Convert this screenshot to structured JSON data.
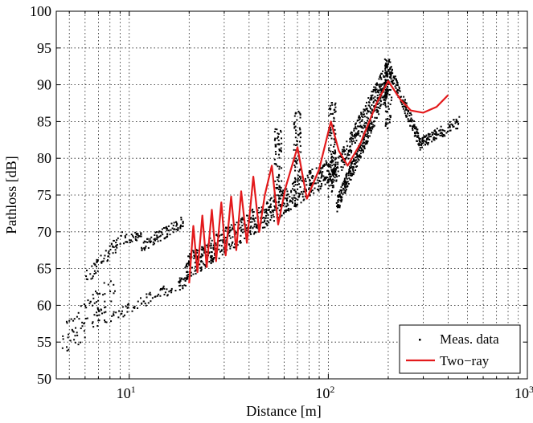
{
  "chart_data": {
    "type": "scatter",
    "title": "",
    "xlabel": "Distance [m]",
    "ylabel": "Pathloss [dB]",
    "xscale": "log",
    "xlim": [
      4.3,
      1000
    ],
    "ylim": [
      50,
      100
    ],
    "yticks": [
      50,
      55,
      60,
      65,
      70,
      75,
      80,
      85,
      90,
      95,
      100
    ],
    "xticks": [
      {
        "value": 10,
        "base": "10",
        "exp": "1"
      },
      {
        "value": 100,
        "base": "10",
        "exp": "2"
      },
      {
        "value": 1000,
        "base": "10",
        "exp": "3"
      }
    ],
    "grid": true,
    "legend_position": "bottom-right",
    "colors": {
      "measured": "#000000",
      "model": "#e31a1c"
    },
    "series": [
      {
        "name": "Meas. data",
        "kind": "scatter",
        "segments": [
          {
            "x_start": 4.6,
            "x_end": 8.5,
            "y_start": 55.0,
            "y_end": 62.0,
            "spread": 2.5,
            "count": 90
          },
          {
            "x_start": 6.0,
            "x_end": 9.5,
            "y_start": 63.5,
            "y_end": 69.5,
            "spread": 1.0,
            "count": 60
          },
          {
            "x_start": 9.5,
            "x_end": 11.5,
            "y_start": 69.0,
            "y_end": 69.5,
            "spread": 0.6,
            "count": 30
          },
          {
            "x_start": 11.5,
            "x_end": 19.0,
            "y_start": 68.0,
            "y_end": 71.5,
            "spread": 0.8,
            "count": 90
          },
          {
            "x_start": 7.5,
            "x_end": 20.0,
            "y_start": 58.0,
            "y_end": 63.5,
            "spread": 0.8,
            "count": 90
          },
          {
            "x_start": 19.0,
            "x_end": 110.0,
            "y_start": 65.0,
            "y_end": 79.0,
            "spread": 1.8,
            "count": 650
          },
          {
            "x_start": 100.0,
            "x_end": 200.0,
            "y_start": 76.0,
            "y_end": 92.0,
            "spread": 1.5,
            "count": 320
          },
          {
            "x_start": 110.0,
            "x_end": 200.0,
            "y_start": 73.5,
            "y_end": 90.0,
            "spread": 1.2,
            "count": 320
          },
          {
            "x_start": 200.0,
            "x_end": 290.0,
            "y_start": 92.5,
            "y_end": 82.0,
            "spread": 1.0,
            "count": 160
          },
          {
            "x_start": 290.0,
            "x_end": 460.0,
            "y_start": 82.0,
            "y_end": 85.0,
            "spread": 0.8,
            "count": 110
          }
        ],
        "peaks": [
          {
            "x": 56,
            "y": 84.0
          },
          {
            "x": 70,
            "y": 86.5
          },
          {
            "x": 105,
            "y": 88.0
          },
          {
            "x": 200,
            "y": 93.5
          }
        ]
      },
      {
        "name": "Two−ray",
        "kind": "line",
        "x_range": [
          20,
          400
        ],
        "points": [
          [
            20,
            63.0
          ],
          [
            21.0,
            70.8
          ],
          [
            22.0,
            64.5
          ],
          [
            23.3,
            72.2
          ],
          [
            24.5,
            65.2
          ],
          [
            26.0,
            73.0
          ],
          [
            27.3,
            66.0
          ],
          [
            29.0,
            74.0
          ],
          [
            30.5,
            66.8
          ],
          [
            32.5,
            74.8
          ],
          [
            34.5,
            67.5
          ],
          [
            36.5,
            75.5
          ],
          [
            39.0,
            68.5
          ],
          [
            42.0,
            77.5
          ],
          [
            45.0,
            70.0
          ],
          [
            48.0,
            75.0
          ],
          [
            52.0,
            79.0
          ],
          [
            56.0,
            71.0
          ],
          [
            61.0,
            76.0
          ],
          [
            70.0,
            81.5
          ],
          [
            78.0,
            74.5
          ],
          [
            90.0,
            78.5
          ],
          [
            103.0,
            85.0
          ],
          [
            113.0,
            81.0
          ],
          [
            125.0,
            79.0
          ],
          [
            145.0,
            82.0
          ],
          [
            175.0,
            87.5
          ],
          [
            200.0,
            90.5
          ],
          [
            230.0,
            88.0
          ],
          [
            260.0,
            86.5
          ],
          [
            300.0,
            86.2
          ],
          [
            350.0,
            87.0
          ],
          [
            400.0,
            88.6
          ]
        ]
      }
    ]
  }
}
